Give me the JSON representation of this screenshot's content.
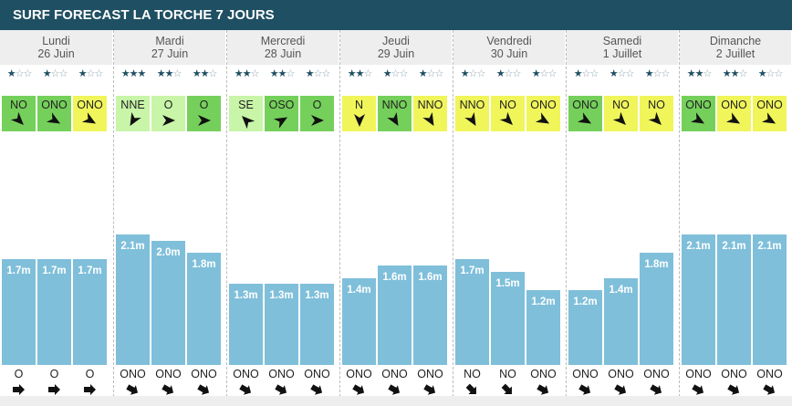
{
  "title": "SURF FORECAST LA TORCHE 7 JOURS",
  "max_height_m": 2.1,
  "wind_colors": {
    "green": "#75d05b",
    "lightgreen": "#c8f5a8",
    "yellow": "#f0f55a"
  },
  "bar_color": "#7fbfda",
  "header_color": "#1f4f62",
  "days": [
    {
      "name": "Lundi",
      "date": "26 Juin",
      "slots": [
        {
          "stars": 1,
          "wind": "NO",
          "wind_color": "green",
          "wind_rot": 315,
          "height": 1.7,
          "height_label": "1.7m",
          "swell_dir": "O",
          "swell_rot": 0
        },
        {
          "stars": 1,
          "wind": "ONO",
          "wind_color": "green",
          "wind_rot": 300,
          "height": 1.7,
          "height_label": "1.7m",
          "swell_dir": "O",
          "swell_rot": 0
        },
        {
          "stars": 1,
          "wind": "ONO",
          "wind_color": "yellow",
          "wind_rot": 300,
          "height": 1.7,
          "height_label": "1.7m",
          "swell_dir": "O",
          "swell_rot": 0
        }
      ]
    },
    {
      "name": "Mardi",
      "date": "27 Juin",
      "slots": [
        {
          "stars": 3,
          "wind": "NNE",
          "wind_color": "lightgreen",
          "wind_rot": 30,
          "height": 2.1,
          "height_label": "2.1m",
          "swell_dir": "ONO",
          "swell_rot": 30
        },
        {
          "stars": 2,
          "wind": "O",
          "wind_color": "lightgreen",
          "wind_rot": 270,
          "height": 2.0,
          "height_label": "2.0m",
          "swell_dir": "ONO",
          "swell_rot": 30
        },
        {
          "stars": 2,
          "wind": "O",
          "wind_color": "green",
          "wind_rot": 270,
          "height": 1.8,
          "height_label": "1.8m",
          "swell_dir": "ONO",
          "swell_rot": 30
        }
      ]
    },
    {
      "name": "Mercredi",
      "date": "28 Juin",
      "slots": [
        {
          "stars": 2,
          "wind": "SE",
          "wind_color": "lightgreen",
          "wind_rot": 135,
          "height": 1.3,
          "height_label": "1.3m",
          "swell_dir": "ONO",
          "swell_rot": 30
        },
        {
          "stars": 2,
          "wind": "OSO",
          "wind_color": "green",
          "wind_rot": 240,
          "height": 1.3,
          "height_label": "1.3m",
          "swell_dir": "ONO",
          "swell_rot": 30
        },
        {
          "stars": 1,
          "wind": "O",
          "wind_color": "green",
          "wind_rot": 270,
          "height": 1.3,
          "height_label": "1.3m",
          "swell_dir": "ONO",
          "swell_rot": 30
        }
      ]
    },
    {
      "name": "Jeudi",
      "date": "29 Juin",
      "slots": [
        {
          "stars": 2,
          "wind": "N",
          "wind_color": "yellow",
          "wind_rot": 0,
          "height": 1.4,
          "height_label": "1.4m",
          "swell_dir": "ONO",
          "swell_rot": 30
        },
        {
          "stars": 1,
          "wind": "NNO",
          "wind_color": "green",
          "wind_rot": 330,
          "height": 1.6,
          "height_label": "1.6m",
          "swell_dir": "ONO",
          "swell_rot": 30
        },
        {
          "stars": 1,
          "wind": "NNO",
          "wind_color": "yellow",
          "wind_rot": 330,
          "height": 1.6,
          "height_label": "1.6m",
          "swell_dir": "ONO",
          "swell_rot": 30
        }
      ]
    },
    {
      "name": "Vendredi",
      "date": "30 Juin",
      "slots": [
        {
          "stars": 1,
          "wind": "NNO",
          "wind_color": "yellow",
          "wind_rot": 330,
          "height": 1.7,
          "height_label": "1.7m",
          "swell_dir": "NO",
          "swell_rot": 45
        },
        {
          "stars": 1,
          "wind": "NO",
          "wind_color": "yellow",
          "wind_rot": 315,
          "height": 1.5,
          "height_label": "1.5m",
          "swell_dir": "NO",
          "swell_rot": 45
        },
        {
          "stars": 1,
          "wind": "ONO",
          "wind_color": "yellow",
          "wind_rot": 300,
          "height": 1.2,
          "height_label": "1.2m",
          "swell_dir": "ONO",
          "swell_rot": 30
        }
      ]
    },
    {
      "name": "Samedi",
      "date": "1 Juillet",
      "slots": [
        {
          "stars": 1,
          "wind": "ONO",
          "wind_color": "green",
          "wind_rot": 300,
          "height": 1.2,
          "height_label": "1.2m",
          "swell_dir": "ONO",
          "swell_rot": 30
        },
        {
          "stars": 1,
          "wind": "NO",
          "wind_color": "yellow",
          "wind_rot": 315,
          "height": 1.4,
          "height_label": "1.4m",
          "swell_dir": "ONO",
          "swell_rot": 30
        },
        {
          "stars": 1,
          "wind": "NO",
          "wind_color": "yellow",
          "wind_rot": 315,
          "height": 1.8,
          "height_label": "1.8m",
          "swell_dir": "ONO",
          "swell_rot": 30
        }
      ]
    },
    {
      "name": "Dimanche",
      "date": "2 Juillet",
      "slots": [
        {
          "stars": 2,
          "wind": "ONO",
          "wind_color": "green",
          "wind_rot": 300,
          "height": 2.1,
          "height_label": "2.1m",
          "swell_dir": "ONO",
          "swell_rot": 30
        },
        {
          "stars": 2,
          "wind": "ONO",
          "wind_color": "yellow",
          "wind_rot": 300,
          "height": 2.1,
          "height_label": "2.1m",
          "swell_dir": "ONO",
          "swell_rot": 30
        },
        {
          "stars": 1,
          "wind": "ONO",
          "wind_color": "yellow",
          "wind_rot": 300,
          "height": 2.1,
          "height_label": "2.1m",
          "swell_dir": "ONO",
          "swell_rot": 30
        }
      ]
    }
  ]
}
